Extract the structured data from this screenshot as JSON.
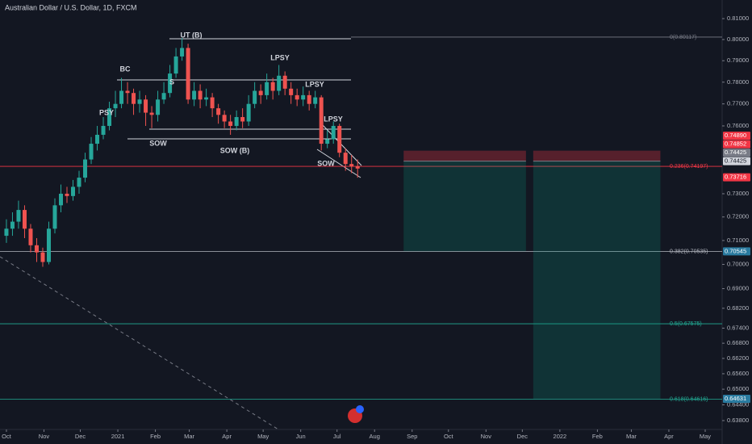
{
  "chart_data": {
    "type": "candlestick",
    "title": "Australian Dollar / U.S. Dollar, 1D, FXCM",
    "log": true,
    "up_color": "#26a69a",
    "down_color": "#ef5350",
    "xlim": [
      -5.3,
      591
    ],
    "ylim": [
      0.6307,
      0.819
    ],
    "x": [
      0,
      5,
      10,
      15,
      20,
      25,
      30,
      35,
      40,
      45,
      50,
      55,
      60,
      65,
      70,
      75,
      80,
      85,
      90,
      95,
      100,
      105,
      110,
      115,
      120,
      125,
      130,
      135,
      140,
      145,
      150,
      155,
      160,
      165,
      170,
      175,
      180,
      185,
      190,
      195,
      200,
      205,
      210,
      215,
      220,
      225,
      230,
      235,
      240,
      245,
      250,
      255,
      260,
      265,
      270,
      275,
      280,
      285,
      290
    ],
    "open": [
      0.712,
      0.715,
      0.718,
      0.723,
      0.715,
      0.708,
      0.705,
      0.701,
      0.715,
      0.725,
      0.73,
      0.729,
      0.733,
      0.737,
      0.745,
      0.752,
      0.756,
      0.76,
      0.768,
      0.77,
      0.776,
      0.775,
      0.77,
      0.772,
      0.766,
      0.765,
      0.772,
      0.775,
      0.784,
      0.792,
      0.796,
      0.772,
      0.776,
      0.772,
      0.773,
      0.768,
      0.765,
      0.762,
      0.76,
      0.764,
      0.762,
      0.77,
      0.776,
      0.774,
      0.78,
      0.776,
      0.783,
      0.777,
      0.774,
      0.772,
      0.774,
      0.77,
      0.773,
      0.752,
      0.754,
      0.76,
      0.748,
      0.743,
      0.742
    ],
    "high": [
      0.719,
      0.722,
      0.727,
      0.725,
      0.717,
      0.711,
      0.707,
      0.718,
      0.728,
      0.734,
      0.733,
      0.736,
      0.74,
      0.748,
      0.755,
      0.76,
      0.764,
      0.771,
      0.776,
      0.782,
      0.78,
      0.777,
      0.776,
      0.774,
      0.769,
      0.776,
      0.78,
      0.788,
      0.796,
      0.8007,
      0.798,
      0.78,
      0.779,
      0.777,
      0.775,
      0.77,
      0.767,
      0.765,
      0.767,
      0.768,
      0.774,
      0.78,
      0.779,
      0.784,
      0.782,
      0.788,
      0.785,
      0.78,
      0.777,
      0.778,
      0.776,
      0.776,
      0.774,
      0.758,
      0.762,
      0.761,
      0.75,
      0.747,
      0.745
    ],
    "low": [
      0.709,
      0.712,
      0.715,
      0.711,
      0.705,
      0.701,
      0.699,
      0.7,
      0.713,
      0.722,
      0.726,
      0.727,
      0.73,
      0.735,
      0.743,
      0.749,
      0.754,
      0.758,
      0.764,
      0.768,
      0.77,
      0.765,
      0.766,
      0.76,
      0.759,
      0.762,
      0.77,
      0.773,
      0.782,
      0.79,
      0.77,
      0.769,
      0.768,
      0.769,
      0.764,
      0.761,
      0.759,
      0.756,
      0.758,
      0.759,
      0.76,
      0.768,
      0.77,
      0.772,
      0.772,
      0.774,
      0.774,
      0.77,
      0.769,
      0.769,
      0.767,
      0.768,
      0.749,
      0.75,
      0.752,
      0.746,
      0.74,
      0.739,
      0.737
    ],
    "close": [
      0.715,
      0.718,
      0.723,
      0.715,
      0.708,
      0.705,
      0.701,
      0.715,
      0.725,
      0.73,
      0.729,
      0.733,
      0.737,
      0.745,
      0.752,
      0.756,
      0.76,
      0.768,
      0.77,
      0.776,
      0.775,
      0.77,
      0.772,
      0.766,
      0.765,
      0.772,
      0.775,
      0.784,
      0.792,
      0.796,
      0.772,
      0.776,
      0.772,
      0.773,
      0.768,
      0.765,
      0.762,
      0.76,
      0.764,
      0.762,
      0.77,
      0.776,
      0.774,
      0.78,
      0.776,
      0.783,
      0.777,
      0.774,
      0.772,
      0.774,
      0.77,
      0.773,
      0.752,
      0.754,
      0.76,
      0.748,
      0.743,
      0.742,
      0.741
    ],
    "xticks": [
      {
        "value": 0,
        "label": "Oct"
      },
      {
        "value": 31,
        "label": "Nov"
      },
      {
        "value": 61,
        "label": "Dec"
      },
      {
        "value": 92,
        "label": "2021"
      },
      {
        "value": 123,
        "label": "Feb"
      },
      {
        "value": 151,
        "label": "Mar"
      },
      {
        "value": 182,
        "label": "Apr"
      },
      {
        "value": 212,
        "label": "May"
      },
      {
        "value": 243,
        "label": "Jun"
      },
      {
        "value": 273,
        "label": "Jul"
      },
      {
        "value": 304,
        "label": "Aug"
      },
      {
        "value": 335,
        "label": "Sep"
      },
      {
        "value": 365,
        "label": "Oct"
      },
      {
        "value": 396,
        "label": "Nov"
      },
      {
        "value": 426,
        "label": "Dec"
      },
      {
        "value": 457,
        "label": "2022"
      },
      {
        "value": 488,
        "label": "Feb"
      },
      {
        "value": 516,
        "label": "Mar"
      },
      {
        "value": 547,
        "label": "Apr"
      },
      {
        "value": 577,
        "label": "May"
      }
    ],
    "yticks": [
      {
        "value": 0.81,
        "label": "0.81000"
      },
      {
        "value": 0.8,
        "label": "0.80000"
      },
      {
        "value": 0.79,
        "label": "0.79000"
      },
      {
        "value": 0.78,
        "label": "0.78000"
      },
      {
        "value": 0.77,
        "label": "0.77000"
      },
      {
        "value": 0.76,
        "label": "0.76000"
      },
      {
        "value": 0.73,
        "label": "0.73000"
      },
      {
        "value": 0.72,
        "label": "0.72000"
      },
      {
        "value": 0.71,
        "label": "0.71000"
      },
      {
        "value": 0.7,
        "label": "0.70000"
      },
      {
        "value": 0.69,
        "label": "0.69000"
      },
      {
        "value": 0.682,
        "label": "0.68200"
      },
      {
        "value": 0.674,
        "label": "0.67400"
      },
      {
        "value": 0.668,
        "label": "0.66800"
      },
      {
        "value": 0.662,
        "label": "0.66200"
      },
      {
        "value": 0.656,
        "label": "0.65600"
      },
      {
        "value": 0.65,
        "label": "0.65000"
      },
      {
        "value": 0.644,
        "label": "0.64400"
      },
      {
        "value": 0.638,
        "label": "0.63800"
      }
    ],
    "fib_levels": [
      {
        "label": "0(0.80117)",
        "price": 0.80117,
        "color": "#787b86"
      },
      {
        "label": "0.236(0.74197)",
        "price": 0.74197,
        "color": "#f23645"
      },
      {
        "label": "0.382(0.70535)",
        "price": 0.70535,
        "color": "#b2b5be"
      },
      {
        "label": "0.5(0.67575)",
        "price": 0.67575,
        "color": "#22ab94"
      },
      {
        "label": "0.618(0.64616)",
        "price": 0.64616,
        "color": "#22ab94"
      }
    ],
    "price_badges": [
      {
        "value": 0.7489,
        "label": "0.74890",
        "color": "#f23645"
      },
      {
        "value": 0.74852,
        "label": "0.74852",
        "color": "#f23645"
      },
      {
        "value": 0.74425,
        "label": "0.74425",
        "color": "#787b86"
      },
      {
        "value": 0.74425,
        "label": "0.74425",
        "color": "#d1d4dc"
      },
      {
        "value": 0.73716,
        "label": "0.73716",
        "color": "#f23645"
      },
      {
        "value": 0.70545,
        "label": "0.70545",
        "color": "#2a7ba0"
      },
      {
        "value": 0.64631,
        "label": "0.64631",
        "color": "#2a7ba0"
      }
    ],
    "positions": [
      {
        "x": [
          328,
          429
        ],
        "stop": 0.7489,
        "entry": 0.74425,
        "target": 0.70545
      },
      {
        "x": [
          435,
          540
        ],
        "stop": 0.7489,
        "entry": 0.74425,
        "target": 0.64631
      }
    ],
    "annotations": [
      "UT (B)",
      "BC",
      "LPSY",
      "LPSY",
      "LPSY",
      "PSY",
      "S",
      "SOW",
      "SOW (B)",
      "SOW"
    ]
  }
}
